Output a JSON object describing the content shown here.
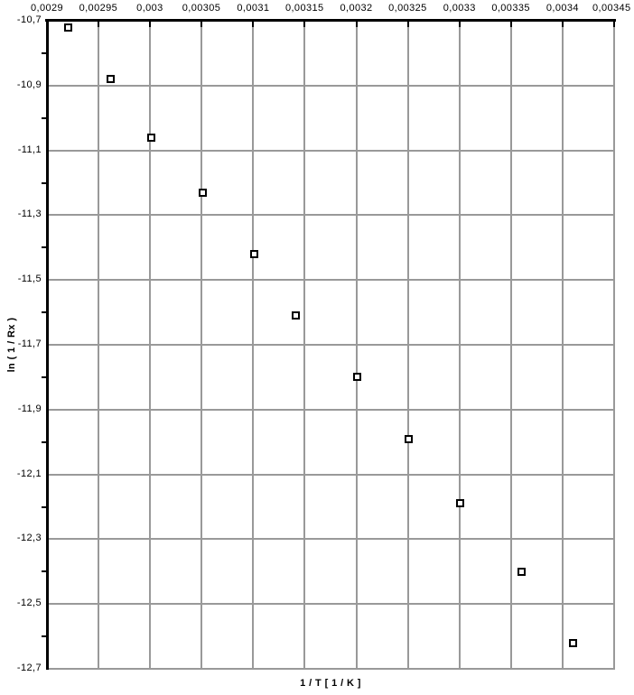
{
  "chart_data": {
    "type": "scatter",
    "title": "",
    "xlabel": "1 / T  [ 1 / K ]",
    "ylabel": "ln ( 1 / Rx )",
    "x_axis_position": "top",
    "grid": true,
    "legend_position": "none",
    "marker": "open-square",
    "xlim": [
      0.0029,
      0.00345
    ],
    "ylim": [
      -12.7,
      -10.7
    ],
    "x_ticks": [
      {
        "v": 0.0029,
        "label": "0,0029"
      },
      {
        "v": 0.00295,
        "label": "0,00295"
      },
      {
        "v": 0.003,
        "label": "0,003"
      },
      {
        "v": 0.00305,
        "label": "0,00305"
      },
      {
        "v": 0.0031,
        "label": "0,0031"
      },
      {
        "v": 0.00315,
        "label": "0,00315"
      },
      {
        "v": 0.0032,
        "label": "0,0032"
      },
      {
        "v": 0.00325,
        "label": "0,00325"
      },
      {
        "v": 0.0033,
        "label": "0,0033"
      },
      {
        "v": 0.00335,
        "label": "0,00335"
      },
      {
        "v": 0.0034,
        "label": "0,0034"
      },
      {
        "v": 0.00345,
        "label": "0,00345"
      }
    ],
    "y_ticks": [
      {
        "v": -10.7,
        "label": "-10,7"
      },
      {
        "v": -10.9,
        "label": "-10,9"
      },
      {
        "v": -11.1,
        "label": "-11,1"
      },
      {
        "v": -11.3,
        "label": "-11,3"
      },
      {
        "v": -11.5,
        "label": "-11,5"
      },
      {
        "v": -11.7,
        "label": "-11,7"
      },
      {
        "v": -11.9,
        "label": "-11,9"
      },
      {
        "v": -12.1,
        "label": "-12,1"
      },
      {
        "v": -12.3,
        "label": "-12,3"
      },
      {
        "v": -12.5,
        "label": "-12,5"
      },
      {
        "v": -12.7,
        "label": "-12,7"
      }
    ],
    "y_minor_ticks": [
      -10.8,
      -11.0,
      -11.2,
      -11.4,
      -11.6,
      -11.8,
      -12.0,
      -12.2,
      -12.4,
      -12.6
    ],
    "points": [
      [
        0.002921,
        -10.72
      ],
      [
        0.002962,
        -10.88
      ],
      [
        0.003001,
        -11.06
      ],
      [
        0.003051,
        -11.23
      ],
      [
        0.003101,
        -11.42
      ],
      [
        0.003141,
        -11.61
      ],
      [
        0.003201,
        -11.8
      ],
      [
        0.003251,
        -11.99
      ],
      [
        0.003301,
        -12.19
      ],
      [
        0.00336,
        -12.4
      ],
      [
        0.00341,
        -12.62
      ]
    ]
  },
  "colors": {
    "background": "#ffffff",
    "axis": "#000000",
    "grid": "#999999",
    "text": "#000000",
    "marker_border": "#000000",
    "marker_fill": "#ffffff"
  }
}
